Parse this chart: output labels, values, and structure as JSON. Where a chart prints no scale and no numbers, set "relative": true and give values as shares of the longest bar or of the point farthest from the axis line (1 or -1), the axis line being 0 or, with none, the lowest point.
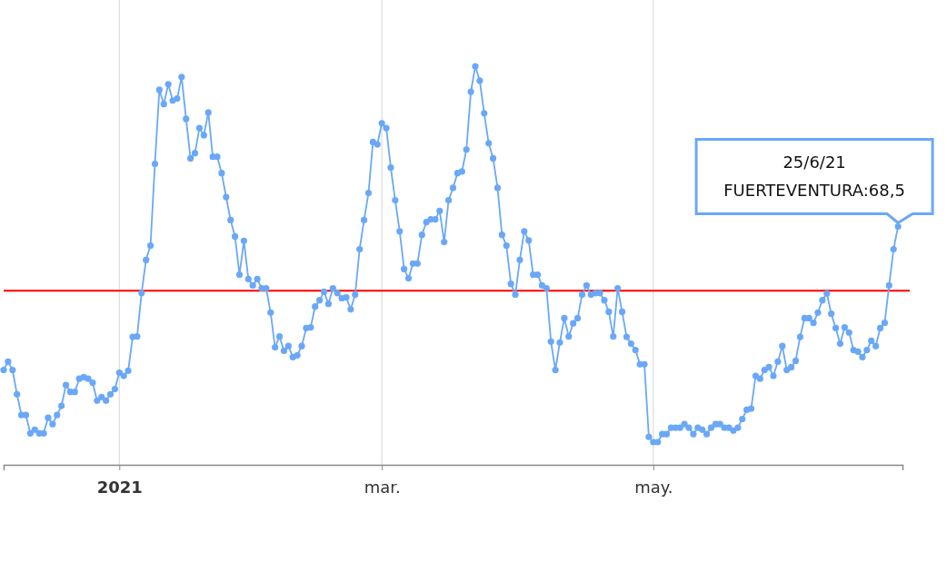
{
  "chart_data": {
    "type": "line",
    "relative": true,
    "grid": "x",
    "marker": "circle",
    "line_style": "solid",
    "xlim": [
      "2020-12-06",
      "2021-06-26"
    ],
    "xticks": [
      {
        "value": "2021-01-01",
        "label": "2021"
      },
      {
        "value": "2021-03-01",
        "label": "mar."
      },
      {
        "value": "2021-05-01",
        "label": "may."
      }
    ],
    "ref_lines": [
      {
        "axis": "y",
        "value": 0.437,
        "color": "#ff0000"
      }
    ],
    "annotations": [
      {
        "text": "25/6/21\nFUERTEVENTURA:68,5",
        "x": "2021-06-25",
        "y": 0.598
      }
    ],
    "x": [
      "2020-12-06",
      "2020-12-07",
      "2020-12-08",
      "2020-12-09",
      "2020-12-10",
      "2020-12-11",
      "2020-12-12",
      "2020-12-13",
      "2020-12-14",
      "2020-12-15",
      "2020-12-16",
      "2020-12-17",
      "2020-12-18",
      "2020-12-19",
      "2020-12-20",
      "2020-12-21",
      "2020-12-22",
      "2020-12-23",
      "2020-12-24",
      "2020-12-25",
      "2020-12-26",
      "2020-12-27",
      "2020-12-28",
      "2020-12-29",
      "2020-12-30",
      "2020-12-31",
      "2021-01-01",
      "2021-01-02",
      "2021-01-03",
      "2021-01-04",
      "2021-01-05",
      "2021-01-06",
      "2021-01-07",
      "2021-01-08",
      "2021-01-09",
      "2021-01-10",
      "2021-01-11",
      "2021-01-12",
      "2021-01-13",
      "2021-01-14",
      "2021-01-15",
      "2021-01-16",
      "2021-01-17",
      "2021-01-18",
      "2021-01-19",
      "2021-01-20",
      "2021-01-21",
      "2021-01-22",
      "2021-01-23",
      "2021-01-24",
      "2021-01-25",
      "2021-01-26",
      "2021-01-27",
      "2021-01-28",
      "2021-01-29",
      "2021-01-30",
      "2021-01-31",
      "2021-02-01",
      "2021-02-02",
      "2021-02-03",
      "2021-02-04",
      "2021-02-05",
      "2021-02-06",
      "2021-02-07",
      "2021-02-08",
      "2021-02-09",
      "2021-02-10",
      "2021-02-11",
      "2021-02-12",
      "2021-02-13",
      "2021-02-14",
      "2021-02-15",
      "2021-02-16",
      "2021-02-17",
      "2021-02-18",
      "2021-02-19",
      "2021-02-20",
      "2021-02-21",
      "2021-02-22",
      "2021-02-23",
      "2021-02-24",
      "2021-02-25",
      "2021-02-26",
      "2021-02-27",
      "2021-02-28",
      "2021-03-01",
      "2021-03-02",
      "2021-03-03",
      "2021-03-04",
      "2021-03-05",
      "2021-03-06",
      "2021-03-07",
      "2021-03-08",
      "2021-03-09",
      "2021-03-10",
      "2021-03-11",
      "2021-03-12",
      "2021-03-13",
      "2021-03-14",
      "2021-03-15",
      "2021-03-16",
      "2021-03-17",
      "2021-03-18",
      "2021-03-19",
      "2021-03-20",
      "2021-03-21",
      "2021-03-22",
      "2021-03-23",
      "2021-03-24",
      "2021-03-25",
      "2021-03-26",
      "2021-03-27",
      "2021-03-28",
      "2021-03-29",
      "2021-03-30",
      "2021-03-31",
      "2021-04-01",
      "2021-04-02",
      "2021-04-03",
      "2021-04-04",
      "2021-04-05",
      "2021-04-06",
      "2021-04-07",
      "2021-04-08",
      "2021-04-09",
      "2021-04-10",
      "2021-04-11",
      "2021-04-12",
      "2021-04-13",
      "2021-04-14",
      "2021-04-15",
      "2021-04-16",
      "2021-04-17",
      "2021-04-18",
      "2021-04-19",
      "2021-04-20",
      "2021-04-21",
      "2021-04-22",
      "2021-04-23",
      "2021-04-24",
      "2021-04-25",
      "2021-04-26",
      "2021-04-27",
      "2021-04-28",
      "2021-04-29",
      "2021-04-30",
      "2021-05-01",
      "2021-05-02",
      "2021-05-03",
      "2021-05-04",
      "2021-05-05",
      "2021-05-06",
      "2021-05-07",
      "2021-05-08",
      "2021-05-09",
      "2021-05-10",
      "2021-05-11",
      "2021-05-12",
      "2021-05-13",
      "2021-05-14",
      "2021-05-15",
      "2021-05-16",
      "2021-05-17",
      "2021-05-18",
      "2021-05-19",
      "2021-05-20",
      "2021-05-21",
      "2021-05-22",
      "2021-05-23",
      "2021-05-24",
      "2021-05-25",
      "2021-05-26",
      "2021-05-27",
      "2021-05-28",
      "2021-05-29",
      "2021-05-30",
      "2021-05-31",
      "2021-06-01",
      "2021-06-02",
      "2021-06-03",
      "2021-06-04",
      "2021-06-05",
      "2021-06-06",
      "2021-06-07",
      "2021-06-08",
      "2021-06-09",
      "2021-06-10",
      "2021-06-11",
      "2021-06-12",
      "2021-06-13",
      "2021-06-14",
      "2021-06-15",
      "2021-06-16",
      "2021-06-17",
      "2021-06-18",
      "2021-06-19",
      "2021-06-20",
      "2021-06-21",
      "2021-06-22",
      "2021-06-23",
      "2021-06-24",
      "2021-06-25"
    ],
    "series": [
      {
        "color": "#6aa8f7",
        "values": [
          0.238,
          0.259,
          0.238,
          0.177,
          0.125,
          0.125,
          0.079,
          0.088,
          0.079,
          0.079,
          0.118,
          0.102,
          0.125,
          0.148,
          0.2,
          0.183,
          0.183,
          0.216,
          0.22,
          0.216,
          0.206,
          0.161,
          0.17,
          0.161,
          0.177,
          0.19,
          0.231,
          0.223,
          0.236,
          0.321,
          0.322,
          0.431,
          0.514,
          0.55,
          0.755,
          0.941,
          0.905,
          0.955,
          0.914,
          0.919,
          0.973,
          0.868,
          0.769,
          0.782,
          0.845,
          0.827,
          0.884,
          0.773,
          0.773,
          0.732,
          0.672,
          0.614,
          0.573,
          0.477,
          0.562,
          0.466,
          0.45,
          0.466,
          0.443,
          0.443,
          0.382,
          0.295,
          0.322,
          0.286,
          0.298,
          0.27,
          0.275,
          0.298,
          0.343,
          0.345,
          0.397,
          0.413,
          0.434,
          0.404,
          0.443,
          0.431,
          0.418,
          0.42,
          0.39,
          0.427,
          0.541,
          0.614,
          0.682,
          0.81,
          0.804,
          0.857,
          0.845,
          0.746,
          0.664,
          0.586,
          0.491,
          0.468,
          0.505,
          0.505,
          0.577,
          0.609,
          0.616,
          0.616,
          0.637,
          0.559,
          0.664,
          0.695,
          0.732,
          0.736,
          0.791,
          0.936,
          1,
          0.964,
          0.882,
          0.807,
          0.769,
          0.695,
          0.577,
          0.55,
          0.454,
          0.427,
          0.514,
          0.586,
          0.563,
          0.477,
          0.477,
          0.45,
          0.443,
          0.309,
          0.238,
          0.307,
          0.368,
          0.322,
          0.355,
          0.368,
          0.427,
          0.45,
          0.427,
          0.431,
          0.431,
          0.413,
          0.384,
          0.322,
          0.443,
          0.384,
          0.321,
          0.304,
          0.288,
          0.252,
          0.252,
          0.07,
          0.057,
          0.057,
          0.077,
          0.077,
          0.093,
          0.093,
          0.093,
          0.102,
          0.093,
          0.077,
          0.093,
          0.088,
          0.077,
          0.093,
          0.102,
          0.102,
          0.093,
          0.093,
          0.086,
          0.093,
          0.115,
          0.138,
          0.141,
          0.223,
          0.216,
          0.238,
          0.245,
          0.223,
          0.259,
          0.298,
          0.238,
          0.245,
          0.261,
          0.321,
          0.368,
          0.368,
          0.356,
          0.382,
          0.413,
          0.43,
          0.379,
          0.343,
          0.304,
          0.345,
          0.332,
          0.288,
          0.284,
          0.27,
          0.288,
          0.311,
          0.298,
          0.343,
          0.356,
          0.45,
          0.541,
          0.598
        ]
      }
    ]
  }
}
